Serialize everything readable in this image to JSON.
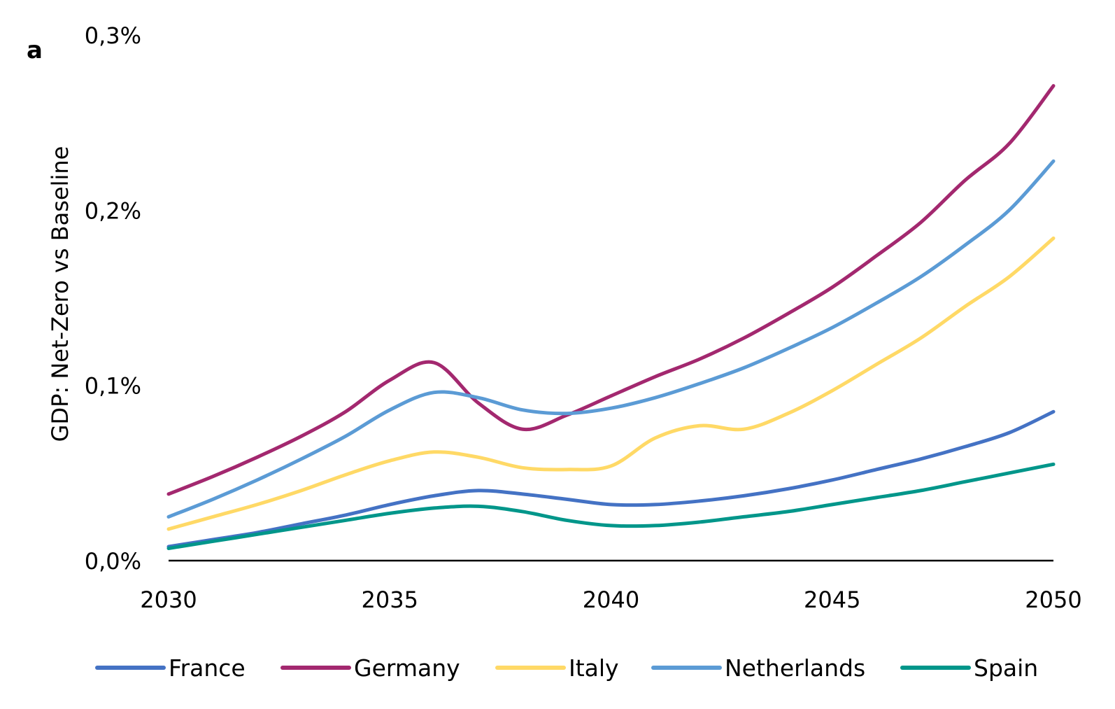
{
  "panel_label": "a",
  "chart_data": {
    "type": "line",
    "title": "",
    "xlabel": "",
    "ylabel": "GDP: Net-Zero vs Baseline",
    "xlim": [
      2030,
      2050
    ],
    "ylim": [
      0,
      0.3
    ],
    "x_ticks": [
      "2030",
      "2035",
      "2040",
      "2045",
      "2050"
    ],
    "y_ticks": [
      "0,0%",
      "0,1%",
      "0,2%",
      "0,3%"
    ],
    "grid": false,
    "legend_position": "bottom",
    "x": [
      2030,
      2031,
      2032,
      2033,
      2034,
      2035,
      2036,
      2037,
      2038,
      2039,
      2040,
      2041,
      2042,
      2043,
      2044,
      2045,
      2046,
      2047,
      2048,
      2049,
      2050
    ],
    "series": [
      {
        "name": "France",
        "color": "#4472C4",
        "values": [
          0.008,
          0.012,
          0.016,
          0.021,
          0.026,
          0.032,
          0.037,
          0.04,
          0.038,
          0.035,
          0.032,
          0.032,
          0.034,
          0.037,
          0.041,
          0.046,
          0.052,
          0.058,
          0.065,
          0.073,
          0.085
        ]
      },
      {
        "name": "Germany",
        "color": "#A3286F",
        "values": [
          0.038,
          0.048,
          0.059,
          0.071,
          0.085,
          0.103,
          0.113,
          0.09,
          0.075,
          0.083,
          0.094,
          0.105,
          0.115,
          0.127,
          0.141,
          0.156,
          0.174,
          0.193,
          0.217,
          0.238,
          0.271
        ]
      },
      {
        "name": "Italy",
        "color": "#FFD966",
        "values": [
          0.018,
          0.025,
          0.032,
          0.04,
          0.049,
          0.057,
          0.062,
          0.059,
          0.053,
          0.052,
          0.054,
          0.07,
          0.077,
          0.075,
          0.084,
          0.097,
          0.112,
          0.127,
          0.145,
          0.162,
          0.184
        ]
      },
      {
        "name": "Netherlands",
        "color": "#5B9BD5",
        "values": [
          0.025,
          0.035,
          0.046,
          0.058,
          0.071,
          0.086,
          0.096,
          0.093,
          0.086,
          0.084,
          0.087,
          0.093,
          0.101,
          0.11,
          0.121,
          0.133,
          0.147,
          0.162,
          0.18,
          0.2,
          0.228
        ]
      },
      {
        "name": "Spain",
        "color": "#00968A",
        "values": [
          0.007,
          0.011,
          0.015,
          0.019,
          0.023,
          0.027,
          0.03,
          0.031,
          0.028,
          0.023,
          0.02,
          0.02,
          0.022,
          0.025,
          0.028,
          0.032,
          0.036,
          0.04,
          0.045,
          0.05,
          0.055
        ]
      }
    ]
  }
}
